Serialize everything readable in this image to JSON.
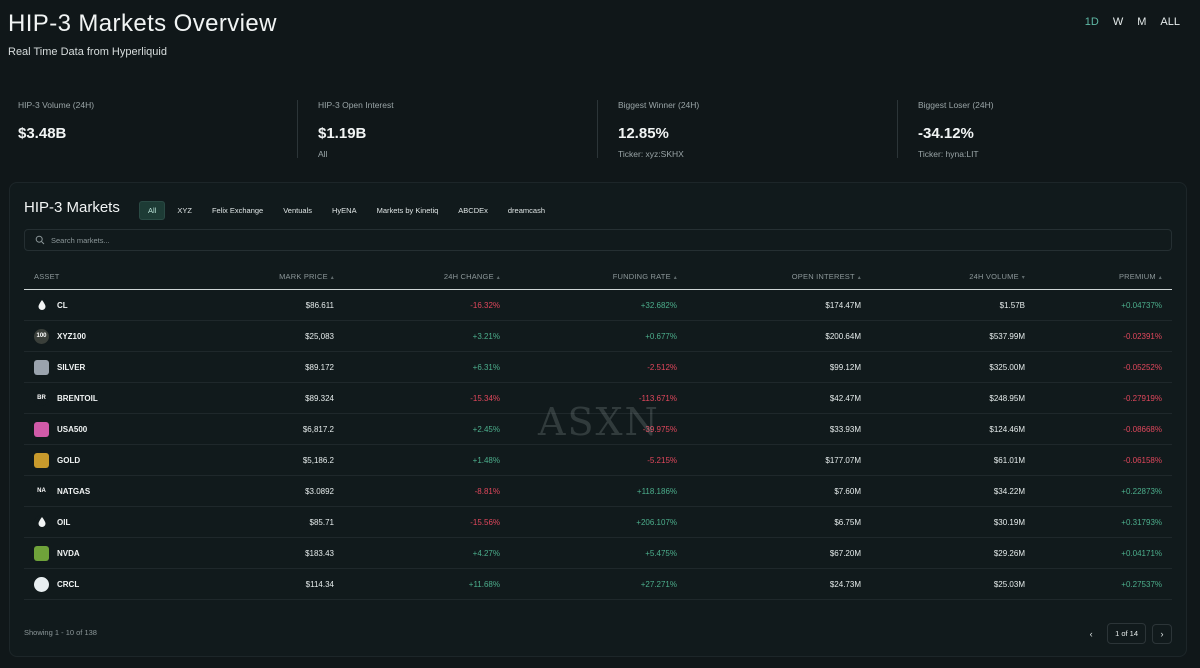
{
  "header": {
    "title": "HIP-3 Markets Overview",
    "subtitle": "Real Time Data from Hyperliquid"
  },
  "timeframes": [
    "1D",
    "W",
    "M",
    "ALL"
  ],
  "active_timeframe": "1D",
  "stats": [
    {
      "label": "HIP-3 Volume (24H)",
      "value": "$3.48B",
      "sub": ""
    },
    {
      "label": "HIP-3 Open Interest",
      "value": "$1.19B",
      "sub": "All"
    },
    {
      "label": "Biggest Winner (24H)",
      "value": "12.85%",
      "sub": "Ticker: xyz:SKHX"
    },
    {
      "label": "Biggest Loser (24H)",
      "value": "-34.12%",
      "sub": "Ticker: hyna:LIT"
    }
  ],
  "markets": {
    "title": "HIP-3 Markets",
    "filters": [
      "All",
      "XYZ",
      "Felix Exchange",
      "Ventuals",
      "HyENA",
      "Markets by Kinetiq",
      "ABCDEx",
      "dreamcash"
    ],
    "active_filter": "All",
    "search_placeholder": "Search markets...",
    "columns": {
      "asset": "ASSET",
      "mark": "MARK PRICE",
      "change": "24H CHANGE",
      "funding": "FUNDING RATE",
      "oi": "OPEN INTEREST",
      "volume": "24H VOLUME",
      "premium": "PREMIUM"
    },
    "rows": [
      {
        "icon": "droplet",
        "icon_text": "",
        "icon_bg": "#111a1c",
        "asset": "CL",
        "mark": "$86.611",
        "change": "-16.32%",
        "funding": "+32.682%",
        "oi": "$174.47M",
        "volume": "$1.57B",
        "premium": "+0.04737%"
      },
      {
        "icon": "xyz100-badge",
        "icon_text": "100",
        "icon_bg": "#3a3f3a",
        "asset": "XYZ100",
        "mark": "$25,083",
        "change": "+3.21%",
        "funding": "+0.677%",
        "oi": "$200.64M",
        "volume": "$537.99M",
        "premium": "-0.02391%"
      },
      {
        "icon": "silver-coin",
        "icon_text": "",
        "icon_bg": "#9aa3ad",
        "asset": "SILVER",
        "mark": "$89.172",
        "change": "+6.31%",
        "funding": "-2.512%",
        "oi": "$99.12M",
        "volume": "$325.00M",
        "premium": "-0.05252%"
      },
      {
        "icon": "brentoil-badge",
        "icon_text": "BR",
        "icon_bg": "#111a1c",
        "asset": "BRENTOIL",
        "mark": "$89.324",
        "change": "-15.34%",
        "funding": "-113.671%",
        "oi": "$42.47M",
        "volume": "$248.95M",
        "premium": "-0.27919%"
      },
      {
        "icon": "usa500-badge",
        "icon_text": "",
        "icon_bg": "#d05aa8",
        "asset": "USA500",
        "mark": "$6,817.2",
        "change": "+2.45%",
        "funding": "-39.975%",
        "oi": "$33.93M",
        "volume": "$124.46M",
        "premium": "-0.08668%"
      },
      {
        "icon": "gold-coin",
        "icon_text": "",
        "icon_bg": "#c89a2c",
        "asset": "GOLD",
        "mark": "$5,186.2",
        "change": "+1.48%",
        "funding": "-5.215%",
        "oi": "$177.07M",
        "volume": "$61.01M",
        "premium": "-0.06158%"
      },
      {
        "icon": "natgas-badge",
        "icon_text": "NA",
        "icon_bg": "#111a1c",
        "asset": "NATGAS",
        "mark": "$3.0892",
        "change": "-8.81%",
        "funding": "+118.186%",
        "oi": "$7.60M",
        "volume": "$34.22M",
        "premium": "+0.22873%"
      },
      {
        "icon": "droplet",
        "icon_text": "",
        "icon_bg": "#111a1c",
        "asset": "OIL",
        "mark": "$85.71",
        "change": "-15.56%",
        "funding": "+206.107%",
        "oi": "$6.75M",
        "volume": "$30.19M",
        "premium": "+0.31793%"
      },
      {
        "icon": "nvda-logo",
        "icon_text": "",
        "icon_bg": "#6fa23a",
        "asset": "NVDA",
        "mark": "$183.43",
        "change": "+4.27%",
        "funding": "+5.475%",
        "oi": "$67.20M",
        "volume": "$29.26M",
        "premium": "+0.04171%"
      },
      {
        "icon": "crcl-logo",
        "icon_text": "",
        "icon_bg": "#e8eef0",
        "asset": "CRCL",
        "mark": "$114.34",
        "change": "+11.68%",
        "funding": "+27.271%",
        "oi": "$24.73M",
        "volume": "$25.03M",
        "premium": "+0.27537%"
      }
    ],
    "showing": "Showing 1 - 10 of 138",
    "page_info": "1 of 14"
  },
  "watermark": "ASXN",
  "colors": {
    "positive": "#4cae8c",
    "negative": "#e0475c",
    "accent": "#5fb8a5"
  }
}
